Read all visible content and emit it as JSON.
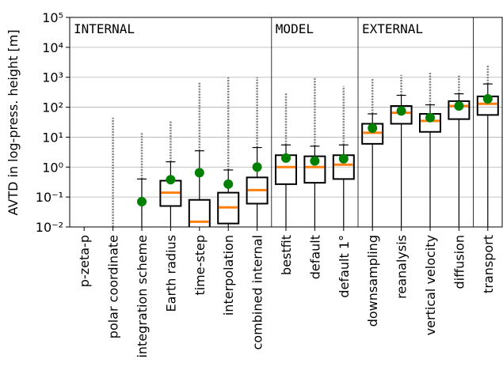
{
  "chart_data": {
    "type": "box",
    "y_label": "AVTD in log-press. height [m]",
    "log_scale": true,
    "grid": true,
    "ylim": [
      0.01,
      100000
    ],
    "yticks": [
      {
        "value": 0.01,
        "label": "10⁻²"
      },
      {
        "value": 0.1,
        "label": "10⁻¹"
      },
      {
        "value": 1,
        "label": "10⁰"
      },
      {
        "value": 10,
        "label": "10¹"
      },
      {
        "value": 100,
        "label": "10²"
      },
      {
        "value": 1000,
        "label": "10³"
      },
      {
        "value": 10000,
        "label": "10⁴"
      },
      {
        "value": 100000,
        "label": "10⁵"
      }
    ],
    "categories": [
      "p-zeta-p",
      "polar coordinate",
      "integration scheme",
      "Earth radius",
      "time-step",
      "interpolation",
      "combined internal",
      "bestfit",
      "default",
      "default 1°",
      "downsampling",
      "reanalysis",
      "vertical velocity",
      "diffusion",
      "transport"
    ],
    "groups": [
      {
        "name": "INTERNAL",
        "size": 7
      },
      {
        "name": "MODEL",
        "size": 3
      },
      {
        "name": "EXTERNAL",
        "size": 4
      },
      {
        "name": null,
        "size": 1
      }
    ],
    "q1": [
      null,
      null,
      null,
      0.05,
      null,
      0.013,
      0.06,
      0.27,
      0.3,
      0.4,
      6,
      28,
      15,
      40,
      55
    ],
    "median": [
      null,
      null,
      null,
      0.14,
      0.015,
      0.045,
      0.17,
      1.0,
      1.0,
      1.2,
      14,
      65,
      35,
      110,
      130
    ],
    "q3": [
      null,
      null,
      null,
      0.35,
      0.08,
      0.14,
      0.45,
      2.5,
      2.3,
      2.5,
      28,
      110,
      60,
      160,
      230
    ],
    "whisker_high": [
      null,
      null,
      0.4,
      1.5,
      3.5,
      0.8,
      4.5,
      5.5,
      5,
      5.5,
      60,
      250,
      120,
      280,
      600
    ],
    "mean": [
      null,
      null,
      0.07,
      0.38,
      0.65,
      0.27,
      1.0,
      2.0,
      1.6,
      1.9,
      20,
      75,
      45,
      110,
      190
    ],
    "flier_max": [
      null,
      45,
      14,
      35,
      700,
      1000,
      1000,
      300,
      1000,
      500,
      900,
      1200,
      1500,
      1200,
      2500
    ],
    "box_color": "#000000",
    "median_color": "#ff7f0e",
    "mean_color": "#008000",
    "flier_color": "#808080"
  }
}
